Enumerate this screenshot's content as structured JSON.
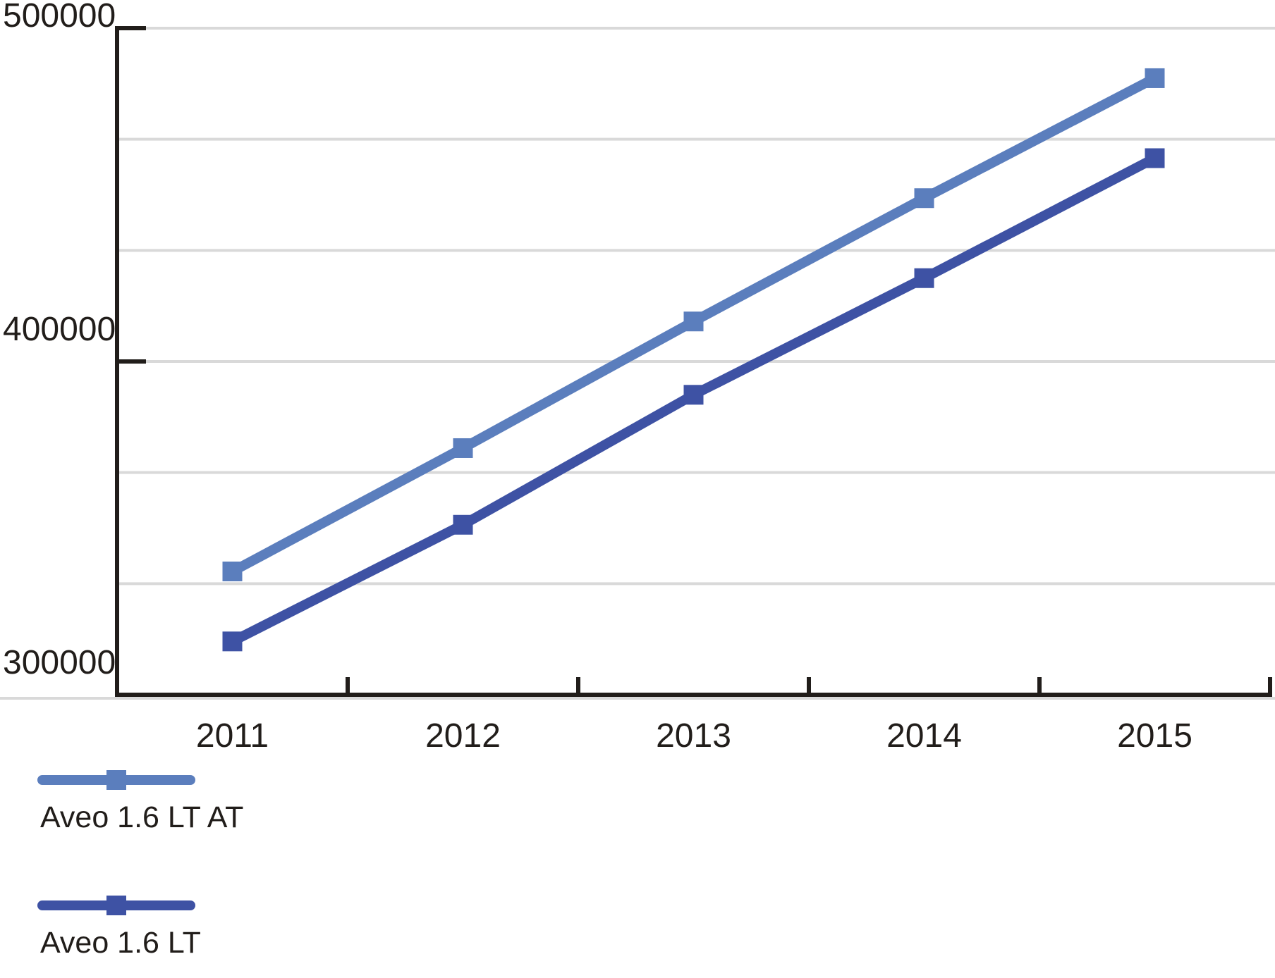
{
  "chart_data": {
    "type": "line",
    "categories": [
      "2011",
      "2012",
      "2013",
      "2014",
      "2015"
    ],
    "series": [
      {
        "name": "Aveo 1.6 LT AT",
        "values": [
          337000,
          374000,
          412000,
          449000,
          485000
        ],
        "color": "#5B7EBD"
      },
      {
        "name": "Aveo 1.6 LT",
        "values": [
          316000,
          351000,
          390000,
          425000,
          461000
        ],
        "color": "#3E52A4"
      }
    ],
    "title": "",
    "xlabel": "",
    "ylabel": "",
    "ylim": [
      300000,
      500000
    ],
    "y_ticks": [
      {
        "value": 500000,
        "label": "500000"
      },
      {
        "value": 400000,
        "label": "400000"
      },
      {
        "value": 300000,
        "label": "300000"
      }
    ],
    "y_grid_divisions": 6,
    "grid": "horizontal gridlines on",
    "marker": "square",
    "legend_position": "bottom-left"
  },
  "legend": {
    "items": [
      {
        "label": "Aveo 1.6 LT AT"
      },
      {
        "label": "Aveo 1.6 LT"
      }
    ]
  },
  "colors": {
    "background": "#FFFFFF",
    "axis": "#211D1A",
    "text": "#211D1A",
    "gridline": "#D9D9D9",
    "series_1": "#5B7EBD",
    "series_2": "#3E52A4"
  }
}
